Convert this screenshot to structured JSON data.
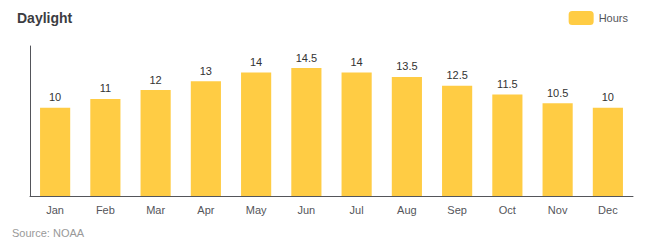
{
  "chart_data": {
    "type": "bar",
    "title": "Daylight",
    "categories": [
      "Jan",
      "Feb",
      "Mar",
      "Apr",
      "May",
      "Jun",
      "Jul",
      "Aug",
      "Sep",
      "Oct",
      "Nov",
      "Dec"
    ],
    "series": [
      {
        "name": "Hours",
        "color": "#FFCC44",
        "values": [
          10,
          11,
          12,
          13,
          14,
          14.5,
          14,
          13.5,
          12.5,
          11.5,
          10.5,
          10
        ]
      }
    ],
    "ylim": [
      0,
      17
    ],
    "tick_labels": "x",
    "grid": false,
    "data_labels": true,
    "legend": "upper right",
    "annotations": [
      "Source: NOAA"
    ]
  }
}
